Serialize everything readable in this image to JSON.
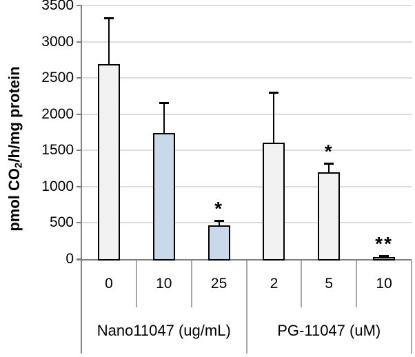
{
  "chart_data": {
    "type": "bar",
    "title": "",
    "ylabel": "pmol CO2/h/mg protein",
    "ylabel_parts": {
      "pre": "pmol CO",
      "sub": "2",
      "post": "/h/mg protein"
    },
    "xlabel": "",
    "ylim": [
      0,
      3500
    ],
    "ytick_step": 500,
    "yticks": [
      0,
      500,
      1000,
      1500,
      2000,
      2500,
      3000,
      3500
    ],
    "grid": "horizontal",
    "legend": "none",
    "groups": [
      {
        "label": "Nano11047 (ug/mL)",
        "categories": [
          "0",
          "10",
          "25"
        ]
      },
      {
        "label": "PG-11047 (uM)",
        "categories": [
          "2",
          "5",
          "10"
        ]
      }
    ],
    "bars": [
      {
        "group": "Nano11047 (ug/mL)",
        "category": "0",
        "value": 2700,
        "error_upper": 630,
        "fill": "#f2f2f2",
        "annotation": ""
      },
      {
        "group": "Nano11047 (ug/mL)",
        "category": "10",
        "value": 1750,
        "error_upper": 410,
        "fill": "#c9d9ea",
        "annotation": ""
      },
      {
        "group": "Nano11047 (ug/mL)",
        "category": "25",
        "value": 480,
        "error_upper": 50,
        "fill": "#c9d9ea",
        "annotation": "*"
      },
      {
        "group": "PG-11047 (uM)",
        "category": "2",
        "value": 1620,
        "error_upper": 680,
        "fill": "#f2f2f2",
        "annotation": ""
      },
      {
        "group": "PG-11047 (uM)",
        "category": "5",
        "value": 1210,
        "error_upper": 110,
        "fill": "#f2f2f2",
        "annotation": "*"
      },
      {
        "group": "PG-11047 (uM)",
        "category": "10",
        "value": 25,
        "error_upper": 25,
        "fill": "#f2f2f2",
        "annotation": "**"
      }
    ],
    "colors": {
      "bar_fill_default": "#f2f2f2",
      "bar_fill_highlight": "#c9d9ea",
      "bar_border": "#000000",
      "error_bar": "#000000",
      "gridline": "#dcdcdc",
      "axis_line": "#808080",
      "divider_line": "#a6a6a6",
      "text": "#000000",
      "background": "#ffffff"
    }
  }
}
